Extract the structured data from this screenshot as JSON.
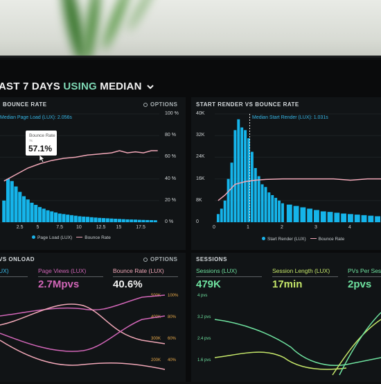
{
  "dashboard": {
    "title_prefix": "AST 7 DAYS",
    "title_using": "USING",
    "title_suffix": "MEDIAN"
  },
  "colors": {
    "accent": "#37b8e8",
    "bar": "#15b4ea",
    "bounce": "#f2a8b8",
    "pink": "#d266b8",
    "green": "#6fe3a0",
    "yellowgreen": "#c6e86a"
  },
  "panel1": {
    "title": "BOUNCE RATE",
    "options": "OPTIONS",
    "median_label": "Median Page Load (LUX): 2.056s",
    "tooltip": {
      "label": "Bounce Rate",
      "sub": "7s",
      "value": "57.1%"
    },
    "y_ticks_right": [
      "100 %",
      "80 %",
      "60 %",
      "40 %",
      "20 %",
      "0 %"
    ],
    "x_ticks": [
      "2.5",
      "5",
      "7.5",
      "10",
      "12.5",
      "15",
      "17.5"
    ],
    "legend_series": "Page Load (LUX)",
    "legend_line": "Bounce Rate"
  },
  "panel2": {
    "title": "START RENDER VS BOUNCE RATE",
    "options": "OPTIONS",
    "median_label": "Median Start Render (LUX): 1.031s",
    "y_ticks_left": [
      "40K",
      "32K",
      "24K",
      "16K",
      "8K",
      "0"
    ],
    "x_ticks": [
      "0",
      "1",
      "2",
      "3",
      "4"
    ],
    "legend_series": "Start Render (LUX)",
    "legend_line": "Bounce Rate"
  },
  "panel3": {
    "title": "VS ONLOAD",
    "options": "OPTIONS",
    "metrics": [
      {
        "label": "UX)",
        "value": "",
        "color": "#37b8e8"
      },
      {
        "label": "Page Views (LUX)",
        "value": "2.7Mpvs",
        "color": "#d266b8"
      },
      {
        "label": "Bounce Rate (LUX)",
        "value": "40.6%",
        "color": "#f2a8b8"
      }
    ],
    "axis_left": [
      "500K",
      "400K",
      "300K",
      "200K"
    ],
    "axis_right": [
      "100%",
      "80%",
      "60%",
      "40%"
    ]
  },
  "panel4": {
    "title": "SESSIONS",
    "metrics": [
      {
        "label": "Sessions (LUX)",
        "value": "479K",
        "color": "#6fe3a0"
      },
      {
        "label": "Session Length (LUX)",
        "value": "17min",
        "color": "#c6e86a"
      },
      {
        "label": "PVs Per Sess",
        "value": "2pvs",
        "color": "#6fe3a0"
      }
    ],
    "axis_left": [
      "4 pvs",
      "3.2 pvs",
      "2.4 pvs",
      "1.6 pvs"
    ]
  },
  "chart_data": [
    {
      "type": "bar",
      "title": "BOUNCE RATE",
      "x": [
        0.5,
        1,
        1.5,
        2,
        2.5,
        3,
        3.5,
        4,
        4.5,
        5,
        5.5,
        6,
        6.5,
        7,
        7.5,
        8,
        8.5,
        9,
        9.5,
        10,
        10.5,
        11,
        11.5,
        12,
        12.5,
        13,
        13.5,
        14,
        14.5,
        15,
        15.5,
        16,
        16.5,
        17,
        17.5,
        18,
        18.5,
        19,
        19.5
      ],
      "series": [
        {
          "name": "Page Load (LUX)",
          "values": [
            20,
            40,
            38,
            33,
            28,
            24,
            21,
            18,
            16,
            14,
            12.5,
            11,
            10,
            9,
            8,
            7.5,
            7,
            6.5,
            6,
            5.5,
            5.2,
            5,
            4.6,
            4.3,
            4,
            3.8,
            3.6,
            3.4,
            3.2,
            3,
            2.8,
            2.6,
            2.5,
            2.4,
            2.2,
            2.1,
            2,
            1.9,
            1.8
          ]
        },
        {
          "name": "Bounce Rate",
          "x": [
            0.5,
            2,
            3.5,
            5,
            6.5,
            8,
            9.5,
            11,
            12.5,
            14,
            15,
            16,
            17,
            18,
            19,
            19.8
          ],
          "values": [
            38,
            44,
            50,
            54,
            57,
            59,
            60,
            62,
            63,
            64,
            66,
            64,
            65,
            64,
            66,
            66
          ]
        }
      ],
      "ylabel_right": "%",
      "ylim": [
        0,
        100
      ]
    },
    {
      "type": "bar",
      "title": "START RENDER VS BOUNCE RATE",
      "x": [
        0.1,
        0.2,
        0.3,
        0.4,
        0.5,
        0.6,
        0.7,
        0.8,
        0.9,
        1.0,
        1.1,
        1.2,
        1.3,
        1.4,
        1.5,
        1.6,
        1.7,
        1.8,
        1.9,
        2.0,
        2.2,
        2.4,
        2.6,
        2.8,
        3.0,
        3.2,
        3.4,
        3.6,
        3.8,
        4.0,
        4.2,
        4.4,
        4.6,
        4.8
      ],
      "series": [
        {
          "name": "Start Render (LUX)",
          "values": [
            3,
            5,
            8,
            16,
            22,
            34,
            38,
            35,
            34,
            31,
            26,
            20,
            17,
            14,
            13,
            11,
            10,
            9,
            8,
            7,
            6.5,
            6,
            5.5,
            5,
            4.5,
            4,
            3.8,
            3.5,
            3.2,
            3,
            2.8,
            2.6,
            2.4,
            2.2
          ]
        },
        {
          "name": "Bounce Rate",
          "x": [
            0.1,
            0.3,
            0.6,
            0.9,
            1.2,
            1.5,
            2.0,
            2.5,
            3.0,
            3.5,
            4.0,
            4.5,
            4.9
          ],
          "values": [
            8,
            10,
            14,
            15,
            15.5,
            15.8,
            16,
            16,
            16,
            16,
            15.5,
            16,
            16
          ]
        }
      ],
      "ylim": [
        0,
        40000
      ]
    }
  ]
}
